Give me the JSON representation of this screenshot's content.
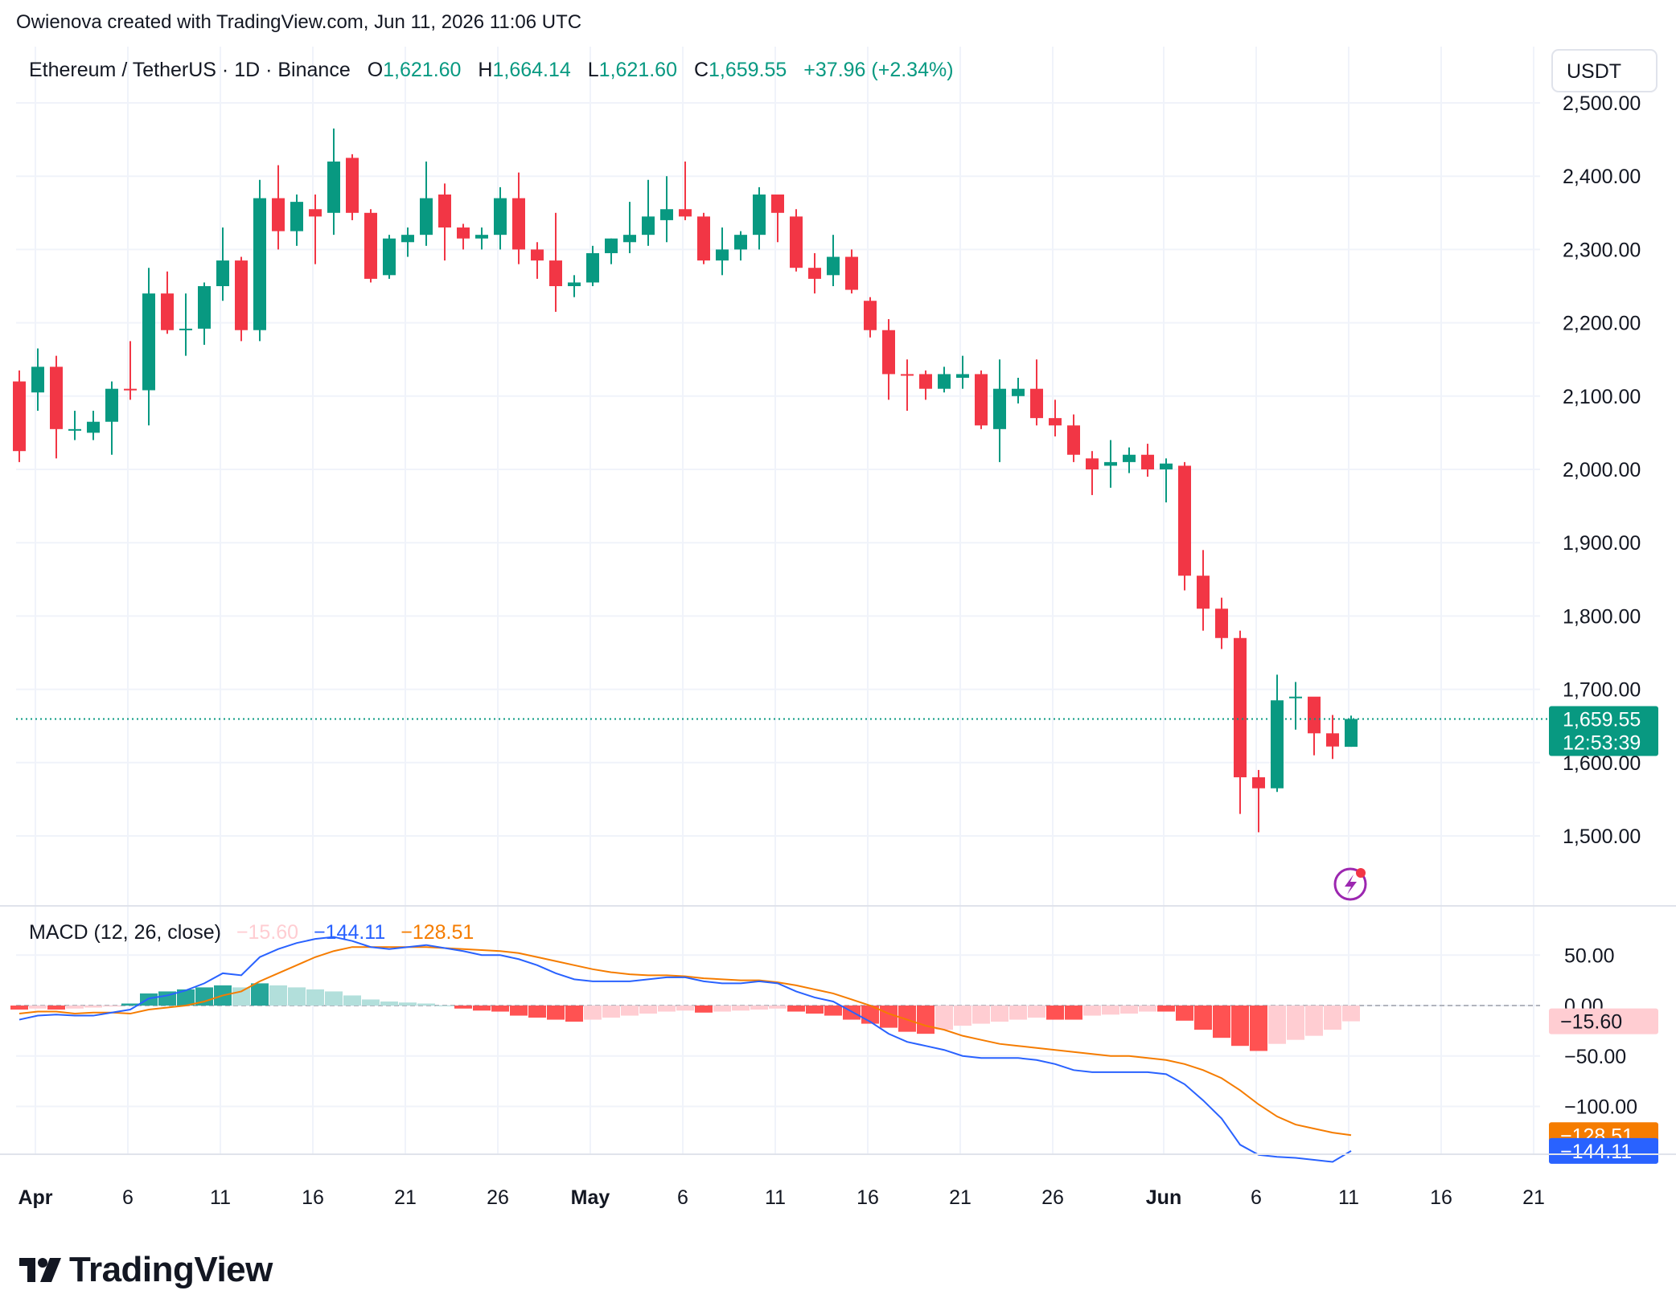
{
  "header": {
    "created_by": "Owienova created with TradingView.com, Jun 11, 2026 11:06 UTC"
  },
  "logo": {
    "text": "TradingView"
  },
  "colors": {
    "up": "#089981",
    "down": "#f23645",
    "macd_line": "#2962ff",
    "signal_line": "#f57c00",
    "hist_up_strong": "#26a69a",
    "hist_up_weak": "#b2dfdb",
    "hist_down_strong": "#ff5252",
    "hist_down_weak": "#ffcdd2"
  },
  "chart_data": {
    "type": "candlestick",
    "title_parts": {
      "symbol": "Ethereum / TetherUS · 1D · Binance",
      "o_label": "O",
      "o": "1,621.60",
      "h_label": "H",
      "h": "1,664.14",
      "l_label": "L",
      "l": "1,621.60",
      "c_label": "C",
      "c": "1,659.55",
      "change": "+37.96 (+2.34%)"
    },
    "currency": "USDT",
    "price_axis": {
      "ticks": [
        "2,500.00",
        "2,400.00",
        "2,300.00",
        "2,200.00",
        "2,100.00",
        "2,000.00",
        "1,900.00",
        "1,800.00",
        "1,700.00",
        "1,600.00",
        "1,500.00"
      ],
      "tick_values": [
        2500,
        2400,
        2300,
        2200,
        2100,
        2000,
        1900,
        1800,
        1700,
        1600,
        1500
      ],
      "range": [
        1400,
        2570
      ]
    },
    "last_price": {
      "value": 1659.55,
      "label": "1,659.55",
      "countdown": "12:53:39"
    },
    "time_axis": {
      "labels": [
        {
          "text": "Apr",
          "day": 0,
          "bold": true
        },
        {
          "text": "6",
          "day": 5
        },
        {
          "text": "11",
          "day": 10
        },
        {
          "text": "16",
          "day": 15
        },
        {
          "text": "21",
          "day": 20
        },
        {
          "text": "26",
          "day": 25
        },
        {
          "text": "May",
          "day": 30,
          "bold": true
        },
        {
          "text": "6",
          "day": 35
        },
        {
          "text": "11",
          "day": 40
        },
        {
          "text": "16",
          "day": 45
        },
        {
          "text": "21",
          "day": 50
        },
        {
          "text": "26",
          "day": 55
        },
        {
          "text": "Jun",
          "day": 61,
          "bold": true
        },
        {
          "text": "6",
          "day": 66
        },
        {
          "text": "11",
          "day": 71
        },
        {
          "text": "16",
          "day": 76
        },
        {
          "text": "21",
          "day": 81
        }
      ]
    },
    "candles": [
      [
        2120,
        2135,
        2010,
        2025
      ],
      [
        2105,
        2165,
        2080,
        2140
      ],
      [
        2140,
        2155,
        2015,
        2055
      ],
      [
        2055,
        2080,
        2040,
        2055
      ],
      [
        2050,
        2080,
        2040,
        2065
      ],
      [
        2065,
        2120,
        2020,
        2110
      ],
      [
        2110,
        2175,
        2095,
        2108
      ],
      [
        2108,
        2275,
        2060,
        2240
      ],
      [
        2240,
        2270,
        2185,
        2190
      ],
      [
        2190,
        2240,
        2155,
        2192
      ],
      [
        2192,
        2255,
        2170,
        2250
      ],
      [
        2250,
        2330,
        2230,
        2285
      ],
      [
        2285,
        2290,
        2175,
        2190
      ],
      [
        2190,
        2395,
        2175,
        2370
      ],
      [
        2370,
        2415,
        2300,
        2325
      ],
      [
        2325,
        2375,
        2305,
        2365
      ],
      [
        2355,
        2375,
        2280,
        2345
      ],
      [
        2350,
        2465,
        2320,
        2420
      ],
      [
        2425,
        2430,
        2340,
        2350
      ],
      [
        2350,
        2355,
        2255,
        2260
      ],
      [
        2265,
        2320,
        2260,
        2315
      ],
      [
        2310,
        2330,
        2290,
        2320
      ],
      [
        2320,
        2420,
        2305,
        2370
      ],
      [
        2375,
        2390,
        2285,
        2330
      ],
      [
        2330,
        2335,
        2300,
        2315
      ],
      [
        2315,
        2330,
        2300,
        2320
      ],
      [
        2320,
        2385,
        2300,
        2370
      ],
      [
        2370,
        2405,
        2280,
        2300
      ],
      [
        2300,
        2310,
        2260,
        2285
      ],
      [
        2285,
        2350,
        2215,
        2250
      ],
      [
        2250,
        2265,
        2235,
        2255
      ],
      [
        2255,
        2305,
        2250,
        2295
      ],
      [
        2295,
        2315,
        2280,
        2315
      ],
      [
        2310,
        2365,
        2295,
        2320
      ],
      [
        2320,
        2395,
        2305,
        2345
      ],
      [
        2340,
        2400,
        2310,
        2355
      ],
      [
        2355,
        2420,
        2340,
        2345
      ],
      [
        2345,
        2350,
        2280,
        2285
      ],
      [
        2285,
        2330,
        2265,
        2300
      ],
      [
        2300,
        2325,
        2285,
        2320
      ],
      [
        2320,
        2385,
        2300,
        2375
      ],
      [
        2375,
        2370,
        2310,
        2350
      ],
      [
        2345,
        2355,
        2270,
        2275
      ],
      [
        2275,
        2295,
        2240,
        2260
      ],
      [
        2265,
        2320,
        2250,
        2290
      ],
      [
        2290,
        2300,
        2240,
        2245
      ],
      [
        2230,
        2235,
        2180,
        2190
      ],
      [
        2190,
        2205,
        2095,
        2130
      ],
      [
        2130,
        2150,
        2080,
        2128
      ],
      [
        2130,
        2135,
        2095,
        2110
      ],
      [
        2110,
        2140,
        2105,
        2130
      ],
      [
        2125,
        2155,
        2110,
        2130
      ],
      [
        2130,
        2135,
        2055,
        2060
      ],
      [
        2055,
        2150,
        2010,
        2110
      ],
      [
        2100,
        2125,
        2090,
        2110
      ],
      [
        2110,
        2150,
        2060,
        2070
      ],
      [
        2070,
        2095,
        2045,
        2060
      ],
      [
        2060,
        2075,
        2010,
        2020
      ],
      [
        2015,
        2025,
        1965,
        2000
      ],
      [
        2005,
        2040,
        1975,
        2010
      ],
      [
        2010,
        2030,
        1995,
        2020
      ],
      [
        2020,
        2035,
        1990,
        2000
      ],
      [
        2000,
        2015,
        1955,
        2008
      ],
      [
        2005,
        2010,
        1835,
        1855
      ],
      [
        1855,
        1890,
        1780,
        1810
      ],
      [
        1810,
        1825,
        1755,
        1770
      ],
      [
        1770,
        1780,
        1530,
        1580
      ],
      [
        1580,
        1590,
        1505,
        1565
      ],
      [
        1565,
        1720,
        1560,
        1685
      ],
      [
        1690,
        1710,
        1645,
        1690
      ],
      [
        1690,
        1685,
        1610,
        1640
      ],
      [
        1640,
        1665,
        1605,
        1622
      ],
      [
        1621.6,
        1664.14,
        1621.6,
        1659.55
      ]
    ],
    "macd": {
      "title": "MACD (12, 26, close)",
      "hist_label": "−15.60",
      "macd_label": "−144.11",
      "signal_label": "−128.51",
      "axis_ticks": [
        "50.00",
        "0.00",
        "−50.00",
        "−100.00"
      ],
      "axis_tick_values": [
        50,
        0,
        -50,
        -100
      ],
      "range": [
        -150,
        75
      ],
      "histogram": [
        -4,
        -3,
        -4,
        -3,
        -2,
        -1,
        2,
        12,
        14,
        16,
        18,
        20,
        18,
        22,
        20,
        18,
        16,
        14,
        10,
        6,
        4,
        3,
        2,
        0,
        -3,
        -5,
        -6,
        -10,
        -12,
        -14,
        -16,
        -14,
        -12,
        -10,
        -8,
        -6,
        -5,
        -7,
        -6,
        -5,
        -4,
        -3,
        -6,
        -8,
        -10,
        -14,
        -18,
        -22,
        -26,
        -28,
        -24,
        -20,
        -18,
        -16,
        -14,
        -12,
        -14,
        -14,
        -10,
        -9,
        -8,
        -6,
        -6,
        -15,
        -24,
        -32,
        -40,
        -45,
        -38,
        -34,
        -30,
        -24,
        -15.6
      ],
      "macd_line": [
        -14,
        -10,
        -9,
        -10,
        -10,
        -7,
        -4,
        7,
        10,
        15,
        22,
        32,
        30,
        48,
        56,
        62,
        66,
        68,
        64,
        58,
        56,
        58,
        60,
        57,
        54,
        50,
        50,
        46,
        40,
        32,
        26,
        24,
        24,
        24,
        26,
        28,
        28,
        24,
        22,
        22,
        24,
        22,
        14,
        8,
        4,
        -6,
        -16,
        -28,
        -36,
        -40,
        -44,
        -50,
        -52,
        -52,
        -52,
        -54,
        -58,
        -64,
        -66,
        -66,
        -66,
        -66,
        -68,
        -78,
        -94,
        -112,
        -138,
        -148,
        -150,
        -151,
        -153,
        -155,
        -144.11
      ],
      "signal_line": [
        -8,
        -6,
        -6,
        -8,
        -7,
        -7,
        -8,
        -4,
        -2,
        0,
        4,
        10,
        14,
        24,
        32,
        40,
        48,
        54,
        58,
        58,
        58,
        58,
        58,
        57,
        56,
        55,
        54,
        52,
        48,
        44,
        40,
        36,
        33,
        31,
        30,
        30,
        29,
        27,
        26,
        25,
        25,
        23,
        20,
        16,
        12,
        6,
        0,
        -8,
        -14,
        -20,
        -24,
        -30,
        -34,
        -38,
        -40,
        -42,
        -44,
        -46,
        -48,
        -50,
        -50,
        -52,
        -54,
        -58,
        -64,
        -72,
        -84,
        -98,
        -110,
        -118,
        -122,
        -126,
        -128.51
      ]
    }
  }
}
